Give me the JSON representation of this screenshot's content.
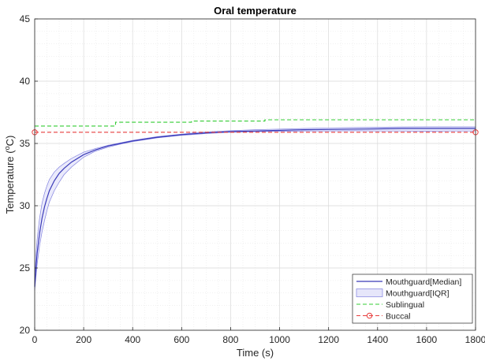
{
  "chart_data": {
    "type": "line",
    "title": "Oral temperature",
    "xlabel": "Time (s)",
    "ylabel_main": "Temperature (",
    "ylabel_sup": "o",
    "ylabel_unit": "C)",
    "xlim": [
      0,
      1800
    ],
    "ylim": [
      20,
      45
    ],
    "xticks": [
      0,
      200,
      400,
      600,
      800,
      1000,
      1200,
      1400,
      1600,
      1800
    ],
    "yticks": [
      20,
      25,
      30,
      35,
      40,
      45
    ],
    "grid": true,
    "minor_grid": true,
    "legend_position": "bottom-right",
    "series": [
      {
        "name": "Mouthguard[Median]",
        "style": "line",
        "color": "#3a3ab8",
        "x": [
          0,
          5,
          10,
          20,
          30,
          40,
          50,
          60,
          80,
          100,
          120,
          150,
          200,
          250,
          300,
          350,
          400,
          450,
          500,
          550,
          600,
          650,
          700,
          800,
          900,
          1000,
          1100,
          1200,
          1300,
          1400,
          1500,
          1600,
          1700,
          1800
        ],
        "y": [
          23.5,
          25.0,
          26.2,
          27.8,
          29.0,
          29.9,
          30.6,
          31.2,
          32.0,
          32.6,
          33.0,
          33.5,
          34.1,
          34.5,
          34.8,
          35.0,
          35.2,
          35.35,
          35.5,
          35.6,
          35.7,
          35.78,
          35.85,
          35.95,
          36.0,
          36.05,
          36.1,
          36.12,
          36.15,
          36.17,
          36.2,
          36.2,
          36.2,
          36.2
        ]
      },
      {
        "name": "Mouthguard[IQR]",
        "style": "band",
        "color": "#8080e0",
        "fill": "#e6e6fa",
        "x": [
          0,
          5,
          10,
          20,
          30,
          40,
          50,
          60,
          80,
          100,
          120,
          150,
          200,
          250,
          300,
          350,
          400,
          450,
          500,
          550,
          600,
          650,
          700,
          800,
          900,
          1000,
          1100,
          1200,
          1300,
          1400,
          1500,
          1600,
          1700,
          1800
        ],
        "low": [
          23.2,
          24.3,
          25.3,
          26.8,
          27.9,
          28.8,
          29.6,
          30.3,
          31.2,
          31.9,
          32.5,
          33.1,
          33.9,
          34.4,
          34.7,
          34.95,
          35.15,
          35.3,
          35.45,
          35.55,
          35.65,
          35.72,
          35.8,
          35.9,
          35.95,
          35.98,
          36.0,
          36.0,
          36.02,
          36.0,
          36.0,
          35.98,
          36.0,
          36.0
        ],
        "high": [
          24.0,
          26.0,
          27.3,
          29.0,
          30.2,
          31.0,
          31.6,
          32.1,
          32.7,
          33.1,
          33.4,
          33.8,
          34.3,
          34.6,
          34.85,
          35.05,
          35.25,
          35.4,
          35.55,
          35.65,
          35.75,
          35.85,
          35.92,
          36.02,
          36.1,
          36.15,
          36.2,
          36.25,
          36.28,
          36.3,
          36.32,
          36.33,
          36.33,
          36.33
        ]
      },
      {
        "name": "Sublingual",
        "style": "dashed",
        "color": "#33cc33",
        "x": [
          0,
          330,
          330,
          640,
          640,
          940,
          940,
          1800
        ],
        "y": [
          36.4,
          36.4,
          36.7,
          36.7,
          36.8,
          36.8,
          36.9,
          36.9
        ]
      },
      {
        "name": "Buccal",
        "style": "dashed-marker",
        "color": "#e83e3e",
        "x": [
          0,
          1800
        ],
        "y": [
          35.9,
          35.9
        ]
      }
    ]
  }
}
